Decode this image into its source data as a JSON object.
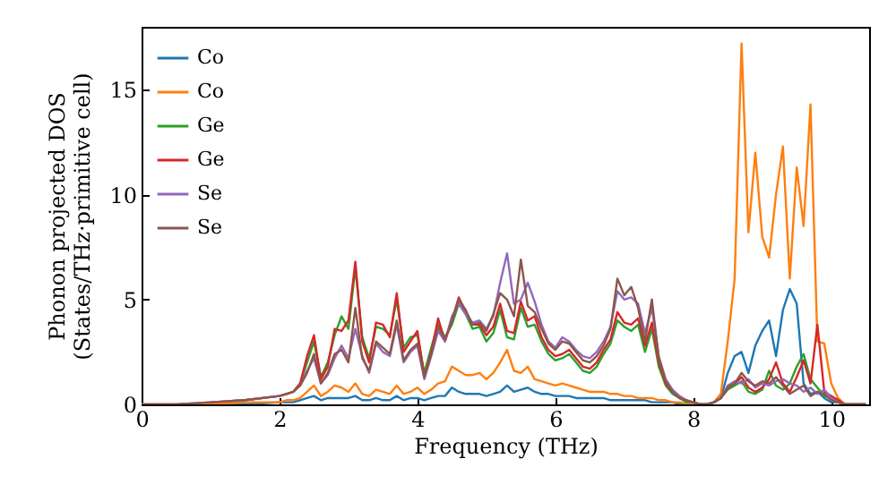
{
  "chart_data": {
    "type": "line",
    "xlabel": "Frequency (THz)",
    "ylabel": "Phonon projected DOS\n(States/THz·primitive cell)",
    "x": [
      0,
      0.5,
      1,
      1.5,
      2.0,
      2.1,
      2.2,
      2.3,
      2.4,
      2.5,
      2.6,
      2.7,
      2.8,
      2.9,
      3.0,
      3.1,
      3.2,
      3.3,
      3.4,
      3.5,
      3.6,
      3.7,
      3.8,
      3.9,
      4.0,
      4.1,
      4.2,
      4.3,
      4.4,
      4.5,
      4.6,
      4.7,
      4.8,
      4.9,
      5.0,
      5.1,
      5.2,
      5.3,
      5.4,
      5.5,
      5.6,
      5.7,
      5.8,
      5.9,
      6.0,
      6.1,
      6.2,
      6.3,
      6.4,
      6.5,
      6.6,
      6.7,
      6.8,
      6.9,
      7.0,
      7.1,
      7.2,
      7.3,
      7.4,
      7.5,
      7.6,
      7.7,
      7.8,
      7.9,
      8.0,
      8.1,
      8.2,
      8.3,
      8.4,
      8.5,
      8.6,
      8.7,
      8.8,
      8.9,
      9.0,
      9.1,
      9.2,
      9.3,
      9.4,
      9.5,
      9.6,
      9.7,
      9.8,
      9.9,
      10.0,
      10.1,
      10.2,
      10.5
    ],
    "series": [
      {
        "name": "Co",
        "color": "#1f77b4",
        "values": [
          null,
          null,
          0,
          0,
          0.1,
          0.1,
          0.1,
          0.2,
          0.3,
          0.4,
          0.2,
          0.3,
          0.3,
          0.3,
          0.3,
          0.4,
          0.2,
          0.2,
          0.3,
          0.2,
          0.2,
          0.4,
          0.2,
          0.3,
          0.3,
          0.2,
          0.3,
          0.4,
          0.4,
          0.8,
          0.6,
          0.5,
          0.5,
          0.5,
          0.4,
          0.5,
          0.6,
          0.9,
          0.6,
          0.7,
          0.8,
          0.6,
          0.5,
          0.5,
          0.4,
          0.4,
          0.4,
          0.3,
          0.3,
          0.3,
          0.3,
          0.3,
          0.2,
          0.2,
          0.2,
          0.2,
          0.2,
          0.2,
          0.1,
          0.1,
          0.1,
          0.1,
          0,
          0,
          0,
          0,
          0,
          0.1,
          0.3,
          1.5,
          2.3,
          2.5,
          1.5,
          2.8,
          3.5,
          4.0,
          2.3,
          4.5,
          5.5,
          4.8,
          1.0,
          0.5,
          0.6,
          0.3,
          0.1,
          0.1,
          0,
          0
        ]
      },
      {
        "name": "Co",
        "color": "#ff7f0e",
        "values": [
          0,
          0,
          0,
          0.1,
          0.1,
          0.2,
          0.2,
          0.3,
          0.6,
          0.9,
          0.4,
          0.6,
          0.9,
          0.8,
          0.6,
          1.0,
          0.5,
          0.4,
          0.7,
          0.6,
          0.5,
          0.9,
          0.5,
          0.6,
          0.8,
          0.5,
          0.7,
          1.0,
          1.1,
          1.8,
          1.6,
          1.4,
          1.4,
          1.5,
          1.2,
          1.5,
          2.0,
          2.6,
          1.6,
          1.5,
          1.8,
          1.2,
          1.1,
          1.0,
          0.9,
          1.0,
          0.9,
          0.8,
          0.7,
          0.6,
          0.6,
          0.6,
          0.5,
          0.5,
          0.4,
          0.4,
          0.3,
          0.3,
          0.3,
          0.2,
          0.2,
          0.1,
          0.1,
          0,
          0,
          0,
          0,
          0.1,
          0.5,
          3.0,
          6.0,
          17.2,
          8.2,
          12.0,
          8.0,
          7.0,
          10.0,
          12.3,
          6.0,
          11.3,
          8.5,
          14.3,
          3.0,
          2.9,
          1.0,
          0.3,
          0,
          0
        ]
      },
      {
        "name": "Ge",
        "color": "#2ca02c",
        "values": [
          null,
          null,
          null,
          null,
          null,
          null,
          0.6,
          1.0,
          2.0,
          3.0,
          1.3,
          2.0,
          3.3,
          4.2,
          3.6,
          6.5,
          3.2,
          2.2,
          3.7,
          3.6,
          3.3,
          5.0,
          2.7,
          3.2,
          3.3,
          1.5,
          2.7,
          3.8,
          3.2,
          3.8,
          4.8,
          4.3,
          3.6,
          3.7,
          3.0,
          3.4,
          4.5,
          3.2,
          3.1,
          4.6,
          3.7,
          3.8,
          3.0,
          2.4,
          2.1,
          2.2,
          2.4,
          2.0,
          1.6,
          1.5,
          1.8,
          2.4,
          2.9,
          4.0,
          3.7,
          3.5,
          3.8,
          2.5,
          3.6,
          1.8,
          0.9,
          0.5,
          0.3,
          0.1,
          0.1,
          0,
          0,
          0.1,
          0.3,
          0.7,
          0.9,
          1.1,
          0.6,
          0.5,
          0.7,
          1.6,
          0.9,
          0.7,
          1.0,
          1.8,
          2.4,
          1.2,
          0.8,
          0.4,
          0.3,
          0.1,
          null,
          null
        ]
      },
      {
        "name": "Ge",
        "color": "#d62728",
        "values": [
          null,
          null,
          0.1,
          0.2,
          0.4,
          0.5,
          0.6,
          1.0,
          2.3,
          3.3,
          1.2,
          1.8,
          3.6,
          3.5,
          4.0,
          6.8,
          3.0,
          2.0,
          3.9,
          3.8,
          3.2,
          5.3,
          2.5,
          3.0,
          3.5,
          1.3,
          2.5,
          4.1,
          3.0,
          4.0,
          5.1,
          4.4,
          3.8,
          3.8,
          3.3,
          3.7,
          4.8,
          3.5,
          3.4,
          4.9,
          4.0,
          4.2,
          3.2,
          2.6,
          2.3,
          2.4,
          2.6,
          2.2,
          1.8,
          1.7,
          2.0,
          2.6,
          3.1,
          4.4,
          3.9,
          3.8,
          4.1,
          2.8,
          3.9,
          2.0,
          1.0,
          0.6,
          0.3,
          0.2,
          0.1,
          0,
          0,
          0.1,
          0.3,
          0.8,
          1.0,
          1.3,
          0.8,
          0.6,
          0.8,
          1.2,
          2.0,
          1.0,
          0.6,
          1.3,
          2.1,
          1.0,
          3.8,
          0.6,
          0.4,
          0.2,
          0,
          0
        ]
      },
      {
        "name": "Se",
        "color": "#9467bd",
        "values": [
          0,
          0,
          0.1,
          0.2,
          0.4,
          0.5,
          0.6,
          0.9,
          1.6,
          2.2,
          1.0,
          1.4,
          2.2,
          2.8,
          2.2,
          3.6,
          2.3,
          1.5,
          2.9,
          2.5,
          2.3,
          3.8,
          2.0,
          2.5,
          2.8,
          1.2,
          2.3,
          3.5,
          3.0,
          4.2,
          4.8,
          4.3,
          3.9,
          4.0,
          3.6,
          4.2,
          5.8,
          7.2,
          4.8,
          5.0,
          5.8,
          4.9,
          3.8,
          3.0,
          2.7,
          3.2,
          3.0,
          2.6,
          2.3,
          2.2,
          2.5,
          3.0,
          3.7,
          5.4,
          5.0,
          5.1,
          4.8,
          3.4,
          4.6,
          2.3,
          1.2,
          0.7,
          0.4,
          0.2,
          0.1,
          0,
          0,
          0.1,
          0.3,
          0.9,
          1.1,
          1.0,
          1.2,
          0.8,
          1.0,
          0.9,
          1.1,
          1.2,
          1.0,
          0.9,
          0.6,
          0.8,
          0.5,
          0.7,
          0.3,
          0.1,
          0,
          0
        ]
      },
      {
        "name": "Se",
        "color": "#8c564b",
        "values": [
          0,
          0,
          0.1,
          0.2,
          0.4,
          0.5,
          0.6,
          0.9,
          1.5,
          2.4,
          1.0,
          1.5,
          2.4,
          2.6,
          2.0,
          4.6,
          2.2,
          1.6,
          3.0,
          2.7,
          2.4,
          4.0,
          2.1,
          2.6,
          2.9,
          1.3,
          2.4,
          3.7,
          3.1,
          4.0,
          5.0,
          4.5,
          3.8,
          3.9,
          3.5,
          4.3,
          5.3,
          5.0,
          4.2,
          6.9,
          4.7,
          4.4,
          3.6,
          2.9,
          2.6,
          3.0,
          2.9,
          2.5,
          2.1,
          2.0,
          2.3,
          2.8,
          3.6,
          6.0,
          5.2,
          5.6,
          4.6,
          3.0,
          5.0,
          2.2,
          1.1,
          0.6,
          0.3,
          0.2,
          0.1,
          0,
          0,
          0.1,
          0.3,
          0.8,
          1.0,
          1.5,
          1.1,
          0.9,
          1.1,
          1.0,
          1.3,
          0.9,
          0.5,
          0.7,
          0.9,
          0.4,
          0.6,
          0.5,
          0.2,
          0.1,
          0,
          0
        ]
      }
    ],
    "xlim": [
      0,
      10.55
    ],
    "ylim": [
      0,
      18
    ],
    "xticks": [
      0,
      2,
      4,
      6,
      8,
      10
    ],
    "yticks": [
      0,
      5,
      10,
      15
    ],
    "legend": "top left",
    "marker": "none",
    "line_style": "solid",
    "grid": false
  }
}
